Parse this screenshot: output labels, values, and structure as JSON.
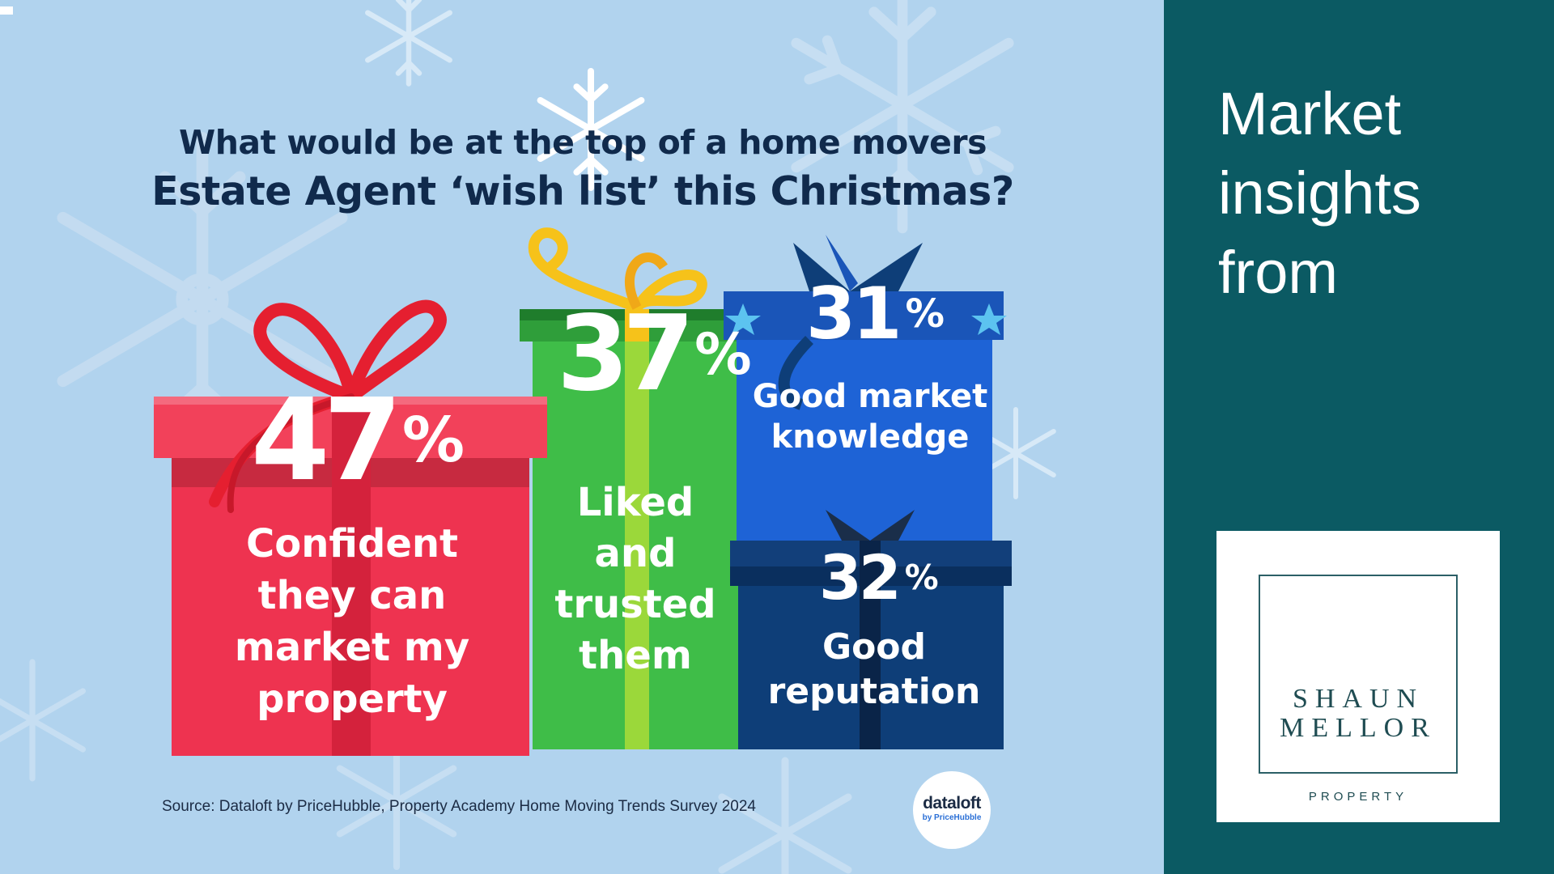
{
  "headline": {
    "line1": "What would be at the top of a home movers",
    "line2": "Estate Agent ‘wish list’ this Christmas?"
  },
  "gifts": [
    {
      "percent": "47",
      "sign": "%",
      "label": "Confident they can market my property",
      "color": "#ee3350"
    },
    {
      "percent": "37",
      "sign": "%",
      "label": "Liked and trusted them",
      "color": "#3fbd48"
    },
    {
      "percent": "31",
      "sign": "%",
      "label": "Good market knowledge",
      "color": "#1e63d6"
    },
    {
      "percent": "32",
      "sign": "%",
      "label": "Good reputation",
      "color": "#0e3e78"
    }
  ],
  "source": "Source: Dataloft by PriceHubble, Property Academy Home Moving Trends Survey 2024",
  "dataloft": {
    "name": "dataloft",
    "sub": "by PriceHubble"
  },
  "sidebar": {
    "title_line1": "Market",
    "title_line2": "insights",
    "title_line3": "from"
  },
  "logo": {
    "name_line1": "SHAUN",
    "name_line2": "MELLOR",
    "sub": "PROPERTY"
  },
  "colors": {
    "background": "#b1d3ee",
    "sidebar": "#0b5a63",
    "headline": "#102a4c"
  }
}
